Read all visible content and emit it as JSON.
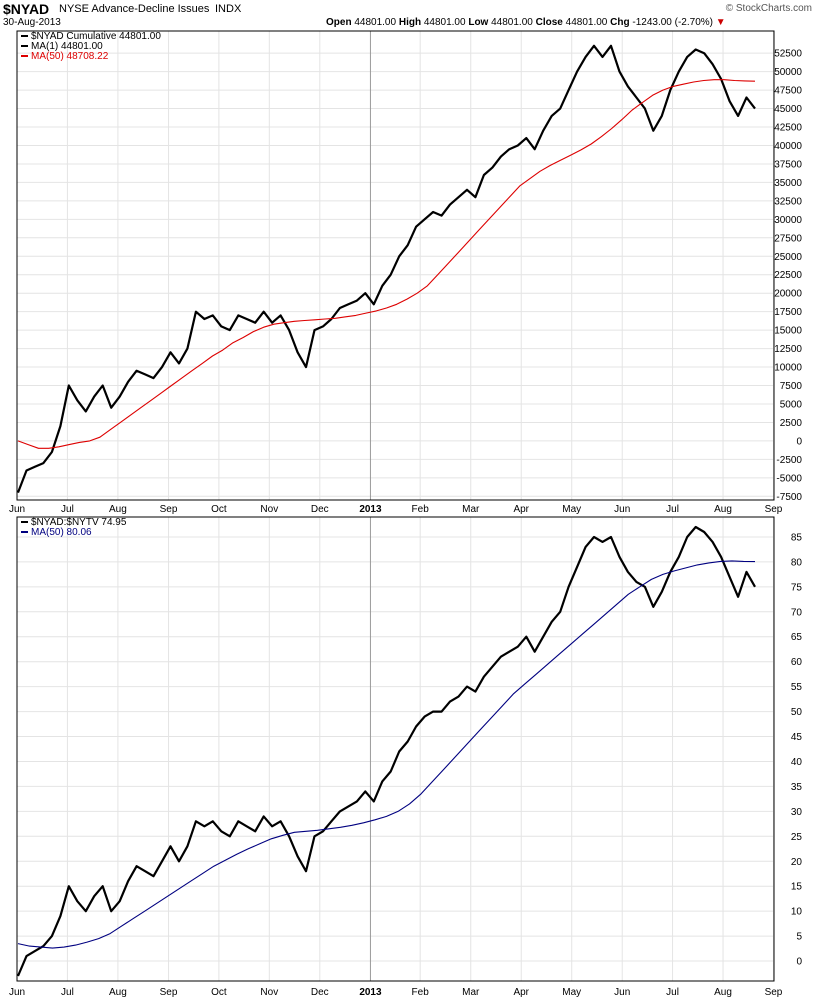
{
  "header": {
    "symbol": "$NYAD",
    "name": "NYSE Advance-Decline Issues",
    "exchange": "INDX",
    "date": "30-Aug-2013",
    "brand": "© StockCharts.com",
    "open_label": "Open",
    "open": "44801.00",
    "high_label": "High",
    "high": "44801.00",
    "low_label": "Low",
    "low": "44801.00",
    "close_label": "Close",
    "close": "44801.00",
    "chg_label": "Chg",
    "chg": "-1243.00 (-2.70%)"
  },
  "colors": {
    "price": "#000000",
    "ma_top": "#dd0000",
    "ma_bottom": "#000080",
    "grid": "#e4e4e4",
    "chg_marker": "#cc0000"
  },
  "chart_data": [
    {
      "type": "line",
      "legend": [
        {
          "text": "$NYAD  Cumulative  44801.00",
          "color": "#000000"
        },
        {
          "text": "MA(1) 44801.00",
          "color": "#000000"
        },
        {
          "text": "MA(50) 48708.22",
          "color": "#dd0000"
        }
      ],
      "ylim": [
        -8000,
        55500
      ],
      "yticks": [
        -7500,
        -5000,
        -2500,
        0,
        2500,
        5000,
        7500,
        10000,
        12500,
        15000,
        17500,
        20000,
        22500,
        25000,
        27500,
        30000,
        32500,
        35000,
        37500,
        40000,
        42500,
        45000,
        47500,
        50000,
        52500
      ],
      "series": [
        {
          "values": [
            -7000,
            -4000,
            -3500,
            -3000,
            -1500,
            2000,
            7500,
            5500,
            4000,
            6000,
            7500,
            4500,
            6000,
            8000,
            9500,
            9000,
            8500,
            10000,
            12000,
            10500,
            12500,
            17500,
            16500,
            17000,
            15500,
            15000,
            17000,
            16500,
            16000,
            17500,
            16000,
            17000,
            15000,
            12000,
            10000,
            15000,
            15500,
            16500,
            18000,
            18500,
            19000,
            20000,
            18500,
            21000,
            22500,
            25000,
            26500,
            29000,
            30000,
            31000,
            30500,
            32000,
            33000,
            34000,
            33000,
            36000,
            37000,
            38500,
            39500,
            40000,
            41000,
            39500,
            42000,
            44000,
            45000,
            47500,
            50000,
            52000,
            53500,
            52000,
            53500,
            50000,
            48000,
            46500,
            45000,
            42000,
            44000,
            47500,
            50000,
            52000,
            53000,
            52500,
            51000,
            49000,
            46000,
            44000,
            46500,
            45000
          ],
          "color": "#000000"
        },
        {
          "values": [
            0,
            -500,
            -1000,
            -1000,
            -800,
            -500,
            -200,
            0,
            500,
            1500,
            2500,
            3500,
            4500,
            5500,
            6500,
            7500,
            8500,
            9500,
            10500,
            11500,
            12300,
            13300,
            14000,
            14800,
            15400,
            15800,
            16000,
            16200,
            16300,
            16400,
            16500,
            16600,
            16800,
            17000,
            17300,
            17600,
            18000,
            18500,
            19200,
            20000,
            21000,
            22500,
            24000,
            25500,
            27000,
            28500,
            30000,
            31500,
            33000,
            34500,
            35500,
            36500,
            37300,
            38000,
            38700,
            39400,
            40200,
            41200,
            42300,
            43500,
            44800,
            45800,
            46800,
            47500,
            48000,
            48300,
            48600,
            48800,
            48900,
            48900,
            48800,
            48750,
            48708
          ],
          "color": "#dd0000"
        }
      ]
    },
    {
      "type": "line",
      "legend": [
        {
          "text": "$NYAD:$NYTV  74.95",
          "color": "#000000"
        },
        {
          "text": "MA(50) 80.06",
          "color": "#000080"
        }
      ],
      "ylim": [
        -4,
        89
      ],
      "yticks": [
        0,
        5,
        10,
        15,
        20,
        25,
        30,
        35,
        40,
        45,
        50,
        55,
        60,
        65,
        70,
        75,
        80,
        85
      ],
      "series": [
        {
          "values": [
            -3,
            1,
            2,
            3,
            5,
            9,
            15,
            12,
            10,
            13,
            15,
            10,
            12,
            16,
            19,
            18,
            17,
            20,
            23,
            20,
            23,
            28,
            27,
            28,
            26,
            25,
            28,
            27,
            26,
            29,
            27,
            28,
            25,
            21,
            18,
            25,
            26,
            28,
            30,
            31,
            32,
            34,
            32,
            36,
            38,
            42,
            44,
            47,
            49,
            50,
            50,
            52,
            53,
            55,
            54,
            57,
            59,
            61,
            62,
            63,
            65,
            62,
            65,
            68,
            70,
            75,
            79,
            83,
            85,
            84,
            85,
            81,
            78,
            76,
            75,
            71,
            74,
            78,
            81,
            85,
            87,
            86,
            84,
            81,
            77,
            73,
            78,
            75
          ],
          "color": "#000000"
        },
        {
          "values": [
            3.5,
            3,
            2.8,
            2.6,
            2.8,
            3.2,
            3.8,
            4.5,
            5.5,
            7,
            8.5,
            10,
            11.5,
            13,
            14.5,
            16,
            17.5,
            19,
            20.2,
            21.4,
            22.5,
            23.5,
            24.5,
            25.2,
            25.8,
            26,
            26.2,
            26.5,
            26.8,
            27.2,
            27.7,
            28.3,
            29,
            30,
            31.5,
            33.5,
            36,
            38.5,
            41,
            43.5,
            46,
            48.5,
            51,
            53.5,
            55.5,
            57.5,
            59.5,
            61.5,
            63.5,
            65.5,
            67.5,
            69.5,
            71.5,
            73.5,
            75,
            76.5,
            77.5,
            78.2,
            78.8,
            79.4,
            79.8,
            80.1,
            80.2,
            80.1,
            80.06
          ],
          "color": "#000080"
        }
      ]
    }
  ],
  "xaxis": {
    "labels": [
      "Jun",
      "Jul",
      "Aug",
      "Sep",
      "Oct",
      "Nov",
      "Dec",
      "2013",
      "Feb",
      "Mar",
      "Apr",
      "May",
      "Jun",
      "Jul",
      "Aug",
      "Sep"
    ],
    "bold": [
      "2013"
    ],
    "positions": [
      0,
      0.0666,
      0.1333,
      0.2002,
      0.2667,
      0.3333,
      0.4,
      0.4669,
      0.5326,
      0.5994,
      0.6661,
      0.7328,
      0.7995,
      0.866,
      0.9327,
      0.9993
    ]
  }
}
